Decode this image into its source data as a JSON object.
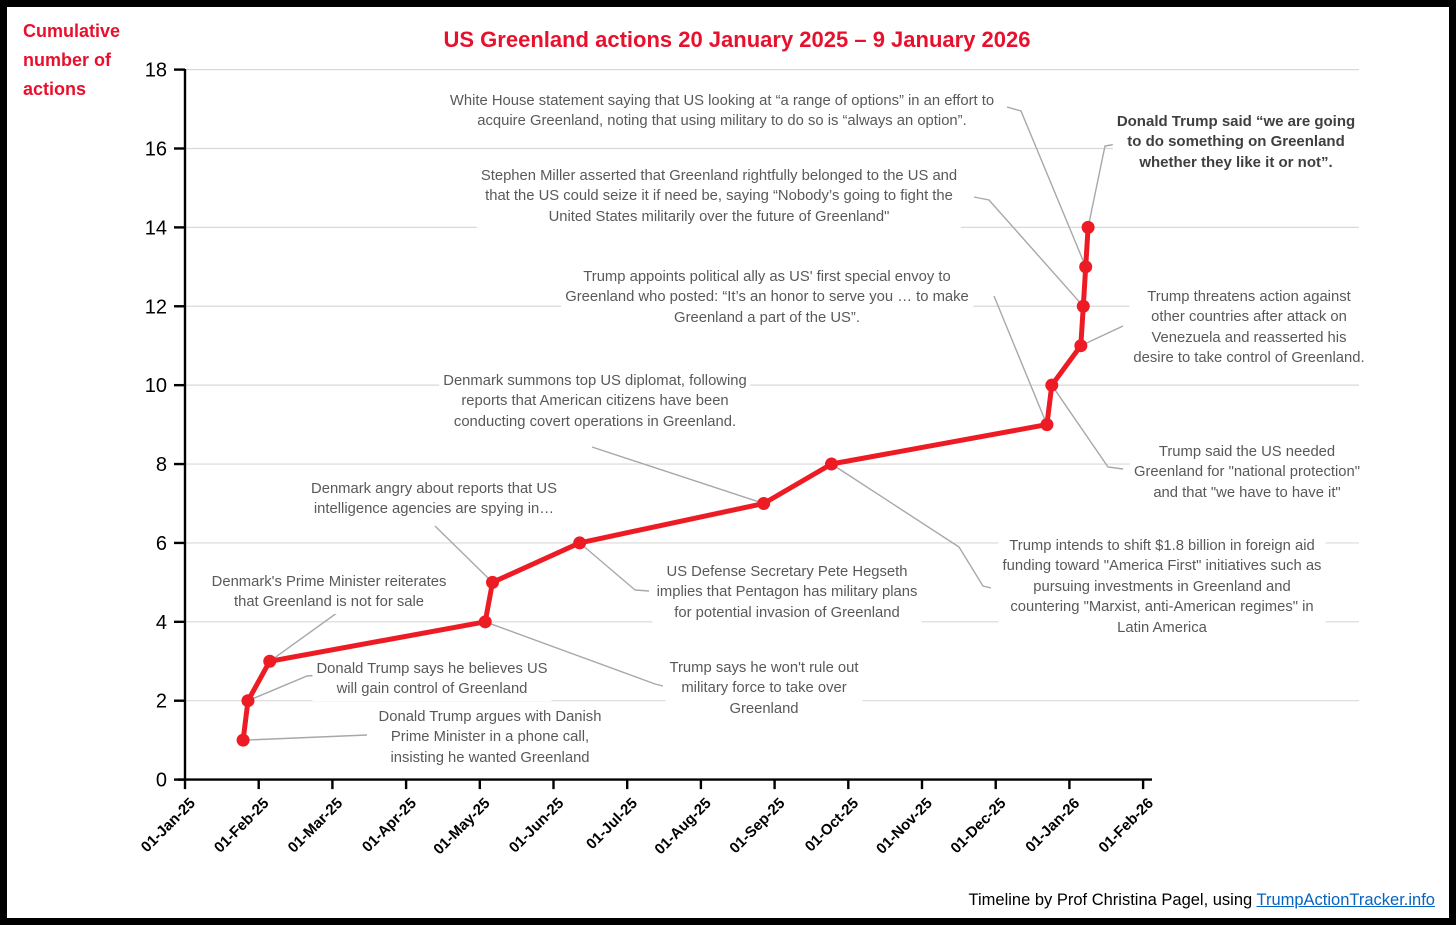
{
  "chart_data": {
    "type": "line",
    "title": "US Greenland actions 20 January 2025 – 9 January 2026",
    "ylabel": "Cumulative number of actions",
    "ylabel_lines": [
      "Cumulative",
      "number of",
      "actions"
    ],
    "xlabel": "",
    "x_tick_labels": [
      "01-Jan-25",
      "01-Feb-25",
      "01-Mar-25",
      "01-Apr-25",
      "01-May-25",
      "01-Jun-25",
      "01-Jul-25",
      "01-Aug-25",
      "01-Sep-25",
      "01-Oct-25",
      "01-Nov-25",
      "01-Dec-25",
      "01-Jan-26",
      "01-Feb-26"
    ],
    "y_ticks": [
      0,
      2,
      4,
      6,
      8,
      10,
      12,
      14,
      16,
      18
    ],
    "ylim": [
      0,
      18
    ],
    "x_range": [
      "01-Jan-25",
      "01-Feb-26"
    ],
    "grid": "horizontal",
    "legend": "none",
    "line_color": "#ed1c24",
    "marker": "circle",
    "series": [
      {
        "name": "Cumulative number of actions",
        "points": [
          {
            "date": "25-Jan-25",
            "value": 1,
            "bold": false,
            "event": [
              "Donald Trump argues with Danish",
              "Prime Minister in a phone call,",
              "insisting he wanted Greenland"
            ]
          },
          {
            "date": "27-Jan-25",
            "value": 2,
            "bold": false,
            "event": [
              "Donald Trump says he believes US",
              "will gain control of Greenland"
            ]
          },
          {
            "date": "05-Feb-25",
            "value": 3,
            "bold": false,
            "event": [
              "Denmark's Prime Minister reiterates",
              "that Greenland is not for sale"
            ]
          },
          {
            "date": "05-May-25",
            "value": 4,
            "bold": false,
            "event": [
              "Trump says he won't rule out",
              "military force to take over",
              "Greenland"
            ]
          },
          {
            "date": "08-May-25",
            "value": 5,
            "bold": false,
            "event": [
              "Denmark angry about reports that US",
              "intelligence agencies are spying in…"
            ]
          },
          {
            "date": "13-Jun-25",
            "value": 6,
            "bold": false,
            "event": [
              "US Defense Secretary Pete Hegseth",
              "implies that Pentagon has military plans",
              "for potential invasion of Greenland"
            ]
          },
          {
            "date": "28-Aug-25",
            "value": 7,
            "bold": false,
            "event": [
              "Denmark summons top US diplomat, following",
              "reports that American citizens have been",
              "conducting covert operations in Greenland."
            ]
          },
          {
            "date": "25-Sep-25",
            "value": 8,
            "bold": false,
            "event": [
              "Trump intends to shift $1.8 billion in foreign aid",
              "funding toward \"America First\" initiatives such as",
              "pursuing investments in Greenland and",
              "countering \"Marxist, anti-American regimes\" in",
              "Latin America"
            ]
          },
          {
            "date": "23-Dec-25",
            "value": 9,
            "bold": false,
            "event": [
              "Trump appoints political ally as US' first special envoy to",
              "Greenland who posted: “It’s an honor to serve you … to make",
              "Greenland a part of the US”."
            ]
          },
          {
            "date": "25-Dec-25",
            "value": 10,
            "bold": false,
            "event": [
              "Trump said the US needed",
              "Greenland for \"national protection\"",
              "and that \"we have to have it\""
            ]
          },
          {
            "date": "06-Jan-26",
            "value": 11,
            "bold": false,
            "event": [
              "Trump threatens action against",
              "other countries after attack on",
              "Venezuela and reasserted his",
              "desire to take control of Greenland."
            ]
          },
          {
            "date": "07-Jan-26",
            "value": 12,
            "bold": false,
            "event": [
              "Stephen Miller asserted that Greenland rightfully belonged to the US and",
              "that the US could seize it if need be, saying “Nobody’s going to fight the",
              "United States militarily over the future of Greenland\""
            ]
          },
          {
            "date": "08-Jan-26",
            "value": 13,
            "bold": false,
            "event": [
              "White House statement saying that US looking at “a range of options” in an effort to",
              "acquire Greenland, noting that using military to do so is “always an option”."
            ]
          },
          {
            "date": "09-Jan-26",
            "value": 14,
            "bold": true,
            "event": [
              "Donald Trump said “we are going",
              "to do something on Greenland",
              "whether they like it or not”."
            ]
          }
        ]
      }
    ],
    "footer": {
      "text": "Timeline by Prof Christina Pagel, using ",
      "link": "TrumpActionTracker.info"
    },
    "colors": {
      "title_red": "#e8112d",
      "line_red": "#ed1c24",
      "annotation_grey": "#595959",
      "bold_annotation_grey": "#3f3f3f",
      "leader_grey": "#a8a8a8",
      "gridline_grey": "#d9d9d9",
      "axis_black": "#000000",
      "link_blue": "#0563c1"
    }
  }
}
